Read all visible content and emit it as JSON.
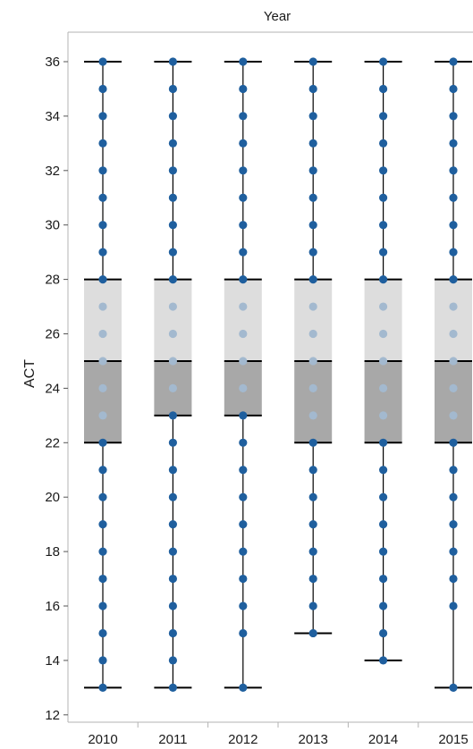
{
  "chart_data": {
    "type": "box",
    "title": "Year",
    "xlabel": "",
    "ylabel": "ACT",
    "ylim": [
      11.6,
      37.3
    ],
    "yticks": [
      12,
      14,
      16,
      18,
      20,
      22,
      24,
      26,
      28,
      30,
      32,
      34,
      36
    ],
    "categories": [
      "2010",
      "2011",
      "2012",
      "2013",
      "2014",
      "2015"
    ],
    "boxes": [
      {
        "category": "2010",
        "min": 13,
        "q1": 22,
        "median": 25,
        "q3": 28,
        "max": 36
      },
      {
        "category": "2011",
        "min": 13,
        "q1": 23,
        "median": 25,
        "q3": 28,
        "max": 36
      },
      {
        "category": "2012",
        "min": 13,
        "q1": 23,
        "median": 25,
        "q3": 28,
        "max": 36
      },
      {
        "category": "2013",
        "min": 15,
        "q1": 22,
        "median": 25,
        "q3": 28,
        "max": 36
      },
      {
        "category": "2014",
        "min": 14,
        "q1": 22,
        "median": 25,
        "q3": 28,
        "max": 36
      },
      {
        "category": "2015",
        "min": 13,
        "q1": 22,
        "median": 25,
        "q3": 28,
        "max": 36
      }
    ],
    "points": [
      {
        "category": "2010",
        "values": [
          13,
          14,
          15,
          16,
          17,
          18,
          19,
          20,
          21,
          22,
          23,
          24,
          25,
          26,
          27,
          28,
          29,
          30,
          31,
          32,
          33,
          34,
          35,
          36
        ]
      },
      {
        "category": "2011",
        "values": [
          13,
          14,
          15,
          16,
          17,
          18,
          19,
          20,
          21,
          22,
          23,
          24,
          25,
          26,
          27,
          28,
          29,
          30,
          31,
          32,
          33,
          34,
          35,
          36
        ]
      },
      {
        "category": "2012",
        "values": [
          13,
          15,
          16,
          17,
          18,
          19,
          20,
          21,
          22,
          23,
          24,
          25,
          26,
          27,
          28,
          29,
          30,
          31,
          32,
          33,
          34,
          35,
          36
        ]
      },
      {
        "category": "2013",
        "values": [
          15,
          16,
          17,
          18,
          19,
          20,
          21,
          22,
          23,
          24,
          25,
          26,
          27,
          28,
          29,
          30,
          31,
          32,
          33,
          34,
          35,
          36
        ]
      },
      {
        "category": "2014",
        "values": [
          14,
          15,
          16,
          17,
          18,
          19,
          20,
          21,
          22,
          23,
          24,
          25,
          26,
          27,
          28,
          29,
          30,
          31,
          32,
          33,
          34,
          35,
          36
        ]
      },
      {
        "category": "2015",
        "values": [
          13,
          16,
          17,
          18,
          19,
          20,
          21,
          22,
          23,
          24,
          25,
          26,
          27,
          28,
          29,
          30,
          31,
          32,
          33,
          34,
          35,
          36
        ]
      }
    ],
    "colors": {
      "point": "#1f5f9e",
      "point_in_box": "#a3b9cf",
      "upper_box": "#dddddd",
      "lower_box": "#a8a8a8",
      "line": "#000000",
      "frame": "#b3b3b3"
    },
    "grid": false,
    "legend": "none"
  }
}
